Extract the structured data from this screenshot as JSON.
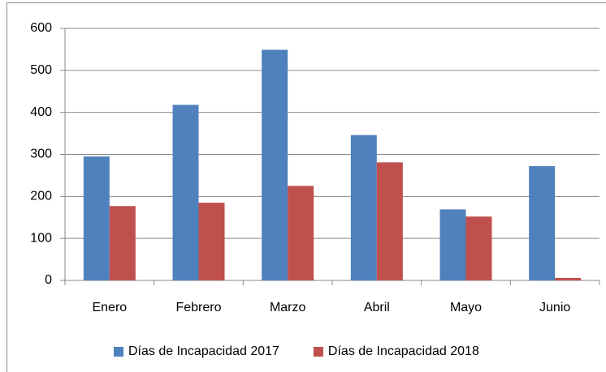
{
  "chart_data": {
    "type": "bar",
    "categories": [
      "Enero",
      "Febrero",
      "Marzo",
      "Abril",
      "Mayo",
      "Junio"
    ],
    "series": [
      {
        "name": "Días de Incapacidad 2017",
        "color": "#4f81bd",
        "values": [
          295,
          418,
          549,
          346,
          169,
          272
        ]
      },
      {
        "name": "Días de Incapacidad 2018",
        "color": "#c0504d",
        "values": [
          177,
          185,
          225,
          281,
          152,
          6
        ]
      }
    ],
    "ylim": [
      0,
      600
    ],
    "yticks": [
      0,
      100,
      200,
      300,
      400,
      500,
      600
    ],
    "grid": true,
    "legend": "bottom"
  }
}
